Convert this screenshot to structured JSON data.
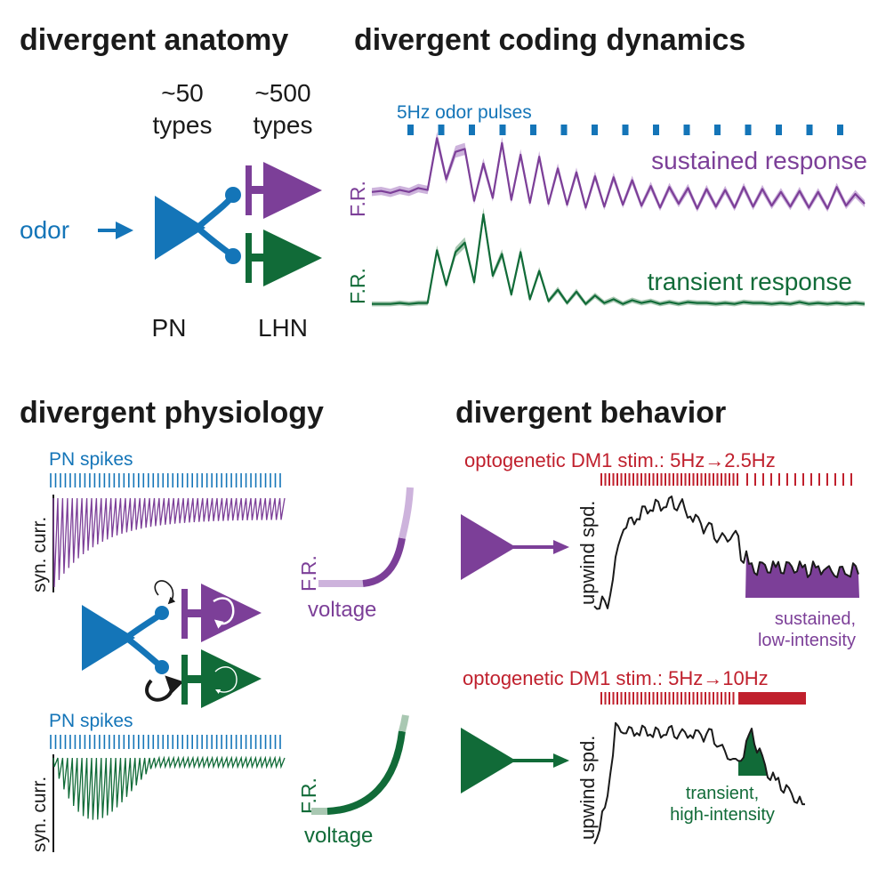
{
  "colors": {
    "blue": "#1475b8",
    "purple": "#7c3f98",
    "purple_light": "#cdb3dc",
    "green": "#116b38",
    "green_light": "#a9c8b2",
    "red": "#c0202d",
    "black": "#1a1a1a"
  },
  "anatomy": {
    "heading": "divergent anatomy",
    "pn_types_count": "~50",
    "pn_types_word": "types",
    "lhn_types_count": "~500",
    "lhn_types_word": "types",
    "input_label": "odor",
    "pn_label": "PN",
    "lhn_label": "LHN"
  },
  "coding": {
    "heading": "divergent coding dynamics",
    "stimulus_label": "5Hz odor pulses",
    "pulse_count": 15,
    "fr_label": "F.R.",
    "sustained_label": "sustained response",
    "transient_label": "transient response",
    "sustained_trace": [
      0.42,
      0.43,
      0.41,
      0.44,
      0.42,
      0.46,
      0.44,
      0.97,
      0.55,
      0.83,
      0.86,
      0.33,
      0.71,
      0.36,
      0.92,
      0.34,
      0.8,
      0.31,
      0.78,
      0.3,
      0.66,
      0.29,
      0.62,
      0.26,
      0.58,
      0.27,
      0.57,
      0.29,
      0.54,
      0.28,
      0.48,
      0.26,
      0.47,
      0.3,
      0.46,
      0.25,
      0.45,
      0.27,
      0.44,
      0.26,
      0.47,
      0.27,
      0.45,
      0.28,
      0.42,
      0.27,
      0.43,
      0.26,
      0.42,
      0.25,
      0.47,
      0.28,
      0.4,
      0.3
    ],
    "transient_trace": [
      0.05,
      0.05,
      0.05,
      0.06,
      0.05,
      0.06,
      0.06,
      0.62,
      0.25,
      0.6,
      0.7,
      0.28,
      1.0,
      0.35,
      0.58,
      0.15,
      0.6,
      0.1,
      0.4,
      0.08,
      0.2,
      0.06,
      0.18,
      0.05,
      0.14,
      0.06,
      0.1,
      0.05,
      0.09,
      0.06,
      0.08,
      0.05,
      0.07,
      0.05,
      0.07,
      0.06,
      0.06,
      0.05,
      0.06,
      0.05,
      0.07,
      0.06,
      0.06,
      0.05,
      0.06,
      0.05,
      0.07,
      0.05,
      0.06,
      0.05,
      0.06,
      0.05,
      0.06,
      0.05
    ]
  },
  "physiology": {
    "heading": "divergent physiology",
    "spikes_label_top": "PN spikes",
    "spikes_label_bottom": "PN spikes",
    "syn_curr_label_top": "syn. curr.",
    "syn_curr_label_bottom": "syn. curr.",
    "fr_label_top": "F.R.",
    "fr_label_bottom": "F.R.",
    "voltage_label_top": "voltage",
    "voltage_label_bottom": "voltage",
    "spike_count": 48
  },
  "behavior": {
    "heading": "divergent behavior",
    "stim_label_top": "optogenetic DM1 stim.: 5Hz→2.5Hz",
    "stim_label_bottom": "optogenetic DM1 stim.: 5Hz→10Hz",
    "ylabel_top": "upwind spd.",
    "ylabel_bottom": "upwind spd.",
    "sustained_note_line1": "sustained,",
    "sustained_note_line2": "low-intensity",
    "transient_note_line1": "transient,",
    "transient_note_line2": "high-intensity"
  }
}
